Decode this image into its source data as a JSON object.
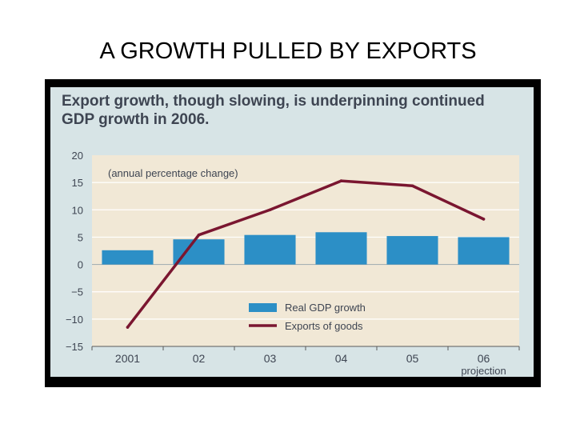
{
  "slide": {
    "title": "A GROWTH PULLED BY EXPORTS"
  },
  "chart_data": {
    "type": "bar",
    "title": "Export growth, though slowing, is underpinning continued GDP growth in 2006.",
    "subtitle": "(annual percentage change)",
    "categories": [
      "2001",
      "02",
      "03",
      "04",
      "05",
      "06"
    ],
    "category_note": "projection",
    "ylim": [
      -15,
      20
    ],
    "yticks": [
      "20",
      "15",
      "10",
      "5",
      "0",
      "−5",
      "−10",
      "−15"
    ],
    "grid": true,
    "legend_position": "bottom-center",
    "series": [
      {
        "name": "Real GDP growth",
        "kind": "bar",
        "color": "#2c8fc6",
        "values": [
          2.6,
          4.6,
          5.4,
          5.9,
          5.2,
          5.0
        ]
      },
      {
        "name": "Exports of goods",
        "kind": "line",
        "color": "#7a1630",
        "values": [
          -11.5,
          5.4,
          10.0,
          15.3,
          14.4,
          8.3
        ]
      }
    ],
    "colors": {
      "panel": "#d7e4e6",
      "plot": "#f1e8d6",
      "grid": "#ffffff",
      "axis": "#5a5a5a",
      "text": "#3e4552"
    }
  }
}
